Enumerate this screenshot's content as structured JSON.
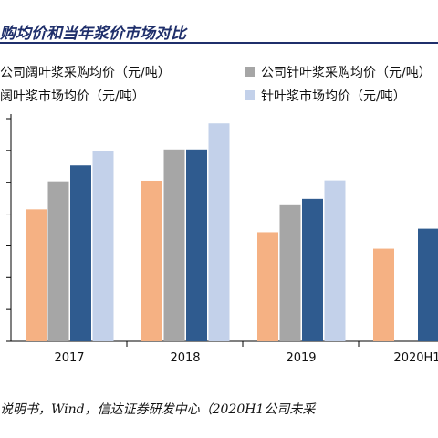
{
  "title": "购均价和当年浆价市场对比",
  "legend": [
    {
      "label": "公司阔叶浆采购均价（元/吨）",
      "color": "#f5b183"
    },
    {
      "label": "公司针叶浆采购均价（元/吨）",
      "color": "#a6a6a6"
    },
    {
      "label": "阔叶浆市场均价（元/吨）",
      "color": "#2f5b8f"
    },
    {
      "label": "针叶浆市场均价（元/吨）",
      "color": "#c3d1ea"
    }
  ],
  "footer": "说明书，Wind，信达证券研发中心（2020H1公司未采",
  "chart_data": {
    "type": "bar",
    "categories": [
      "2017",
      "2018",
      "2019",
      "2020H1"
    ],
    "series": [
      {
        "name": "公司阔叶浆采购均价（元/吨）",
        "values": [
          4150,
          5050,
          3430,
          2910
        ]
      },
      {
        "name": "公司针叶浆采购均价（元/吨）",
        "values": [
          5030,
          6030,
          4280,
          null
        ]
      },
      {
        "name": "阔叶浆市场均价（元/吨）",
        "values": [
          5530,
          6030,
          4480,
          3540
        ]
      },
      {
        "name": "针叶浆市场均价（元/吨）",
        "values": [
          5970,
          6850,
          5060,
          null
        ]
      }
    ],
    "ylim": [
      0,
      7000
    ],
    "grid": false
  }
}
